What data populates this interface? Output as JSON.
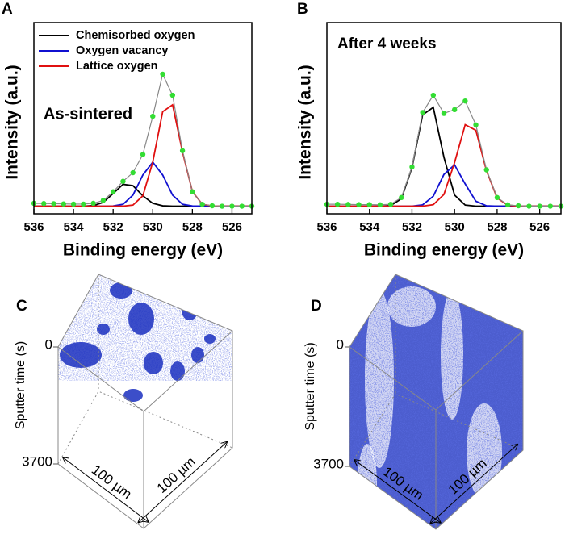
{
  "chart_data": [
    {
      "type": "line",
      "panel_label": "A",
      "annotation": "As-sintered",
      "xlabel": "Binding energy (eV)",
      "ylabel": "Intensity (a.u.)",
      "x": [
        536,
        535.5,
        535,
        534.5,
        534,
        533.5,
        533,
        532.5,
        532,
        531.5,
        531,
        530.5,
        530,
        529.5,
        529,
        528.5,
        528,
        527.5,
        527,
        526.5,
        526,
        525.5,
        525
      ],
      "xlim": [
        536,
        525
      ],
      "xticks": [
        536,
        534,
        532,
        530,
        528,
        526
      ],
      "ylim": [
        0,
        1
      ],
      "legend": "upper left",
      "series": [
        {
          "name": "Chemisorbed oxygen",
          "color": "#000000",
          "values": [
            0.04,
            0.04,
            0.04,
            0.04,
            0.04,
            0.04,
            0.043,
            0.06,
            0.106,
            0.154,
            0.147,
            0.094,
            0.055,
            0.042,
            0.04,
            0.04,
            0.04,
            0.04,
            0.04,
            0.04,
            0.04,
            0.04,
            0.04
          ]
        },
        {
          "name": "Oxygen vacancy",
          "color": "#1010d0",
          "values": [
            0.04,
            0.04,
            0.04,
            0.04,
            0.04,
            0.04,
            0.04,
            0.04,
            0.041,
            0.05,
            0.098,
            0.203,
            0.27,
            0.203,
            0.098,
            0.05,
            0.041,
            0.04,
            0.04,
            0.04,
            0.04,
            0.04,
            0.04
          ]
        },
        {
          "name": "Lattice oxygen",
          "color": "#e01010",
          "values": [
            0.04,
            0.04,
            0.04,
            0.04,
            0.04,
            0.04,
            0.04,
            0.04,
            0.04,
            0.04,
            0.046,
            0.094,
            0.271,
            0.534,
            0.57,
            0.324,
            0.116,
            0.05,
            0.041,
            0.04,
            0.04,
            0.04,
            0.04
          ]
        },
        {
          "color": "#33dd33",
          "marker": "circle",
          "values": [
            0.055,
            0.054,
            0.053,
            0.052,
            0.051,
            0.051,
            0.055,
            0.07,
            0.115,
            0.17,
            0.215,
            0.31,
            0.51,
            0.73,
            0.62,
            0.33,
            0.115,
            0.05,
            0.042,
            0.04,
            0.04,
            0.04,
            0.04
          ]
        }
      ]
    },
    {
      "type": "line",
      "panel_label": "B",
      "annotation": "After 4 weeks",
      "xlabel": "Binding energy (eV)",
      "ylabel": "Intensity (a.u.)",
      "x": [
        536,
        535.5,
        535,
        534.5,
        534,
        533.5,
        533,
        532.5,
        532,
        531.5,
        531,
        530.5,
        530,
        529.5,
        529,
        528.5,
        528,
        527.5,
        527,
        526.5,
        526,
        525.5,
        525
      ],
      "xlim": [
        536,
        525
      ],
      "xticks": [
        536,
        534,
        532,
        530,
        528,
        526
      ],
      "ylim": [
        0,
        1
      ],
      "series": [
        {
          "color": "#000000",
          "values": [
            0.04,
            0.04,
            0.04,
            0.04,
            0.04,
            0.04,
            0.043,
            0.079,
            0.242,
            0.518,
            0.557,
            0.296,
            0.098,
            0.046,
            0.04,
            0.04,
            0.04,
            0.04,
            0.04,
            0.04,
            0.04,
            0.04,
            0.04
          ]
        },
        {
          "color": "#1010d0",
          "values": [
            0.04,
            0.04,
            0.04,
            0.04,
            0.04,
            0.04,
            0.04,
            0.04,
            0.04,
            0.047,
            0.092,
            0.206,
            0.256,
            0.156,
            0.066,
            0.042,
            0.04,
            0.04,
            0.04,
            0.04,
            0.04,
            0.04,
            0.04
          ]
        },
        {
          "color": "#e01010",
          "values": [
            0.04,
            0.04,
            0.04,
            0.04,
            0.04,
            0.04,
            0.04,
            0.04,
            0.04,
            0.04,
            0.048,
            0.101,
            0.268,
            0.466,
            0.437,
            0.226,
            0.083,
            0.045,
            0.04,
            0.04,
            0.04,
            0.04,
            0.04
          ]
        },
        {
          "color": "#33dd33",
          "marker": "circle",
          "values": [
            0.05,
            0.05,
            0.049,
            0.048,
            0.048,
            0.047,
            0.05,
            0.085,
            0.245,
            0.53,
            0.62,
            0.525,
            0.545,
            0.59,
            0.465,
            0.23,
            0.085,
            0.047,
            0.042,
            0.04,
            0.04,
            0.04,
            0.04
          ]
        }
      ]
    },
    {
      "type": "volume",
      "panel_label": "C",
      "zlabel": "Sputter time (s)",
      "zlim": [
        0,
        3700
      ],
      "zticks": [
        0,
        3700
      ],
      "xlabel": "100 µm",
      "ylabel": "100 µm",
      "color": "#1a2fc0",
      "fill": "sparse"
    },
    {
      "type": "volume",
      "panel_label": "D",
      "zlabel": "Sputter time (s)",
      "zlim": [
        0,
        3700
      ],
      "zticks": [
        0,
        3700
      ],
      "xlabel": "100 µm",
      "ylabel": "100 µm",
      "color": "#1a2fc0",
      "fill": "dense"
    }
  ]
}
